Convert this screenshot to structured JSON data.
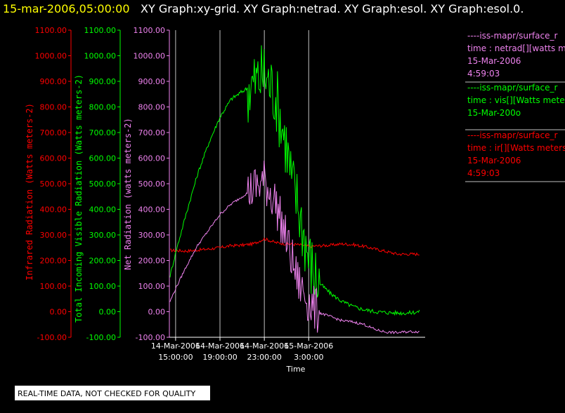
{
  "header": {
    "datetime": "15-mar-2006,05:00:00",
    "graphs": "XY Graph:xy-grid.  XY Graph:netrad.  XY Graph:esol.  XY Graph:esol.0."
  },
  "colors": {
    "background": "#000000",
    "datetime": "#ffff00",
    "title": "#ffffff",
    "ir": "#ff0000",
    "vis": "#00ff00",
    "net": "#ee82ee",
    "grid": "#c0c0c0",
    "axis": "#ffffff"
  },
  "axes": {
    "ir": {
      "label": "Infrared Radiation (Watts meters-2)",
      "ticks": [
        "1100.00",
        "1000.00",
        "900.00",
        "800.00",
        "700.00",
        "600.00",
        "500.00",
        "400.00",
        "300.00",
        "200.00",
        "100.00",
        "0.00",
        "-100.00"
      ]
    },
    "vis": {
      "label": "Total Incoming Visible Radiation (Watts meters-2)",
      "ticks": [
        "1100.00",
        "1000.00",
        "900.00",
        "800.00",
        "700.00",
        "600.00",
        "500.00",
        "400.00",
        "300.00",
        "200.00",
        "100.00",
        "0.00",
        "-100.00"
      ]
    },
    "net": {
      "label": "Net Radiation (watts meters-2)",
      "ticks": [
        "1100.00",
        "1000.00",
        "900.00",
        "800.00",
        "700.00",
        "600.00",
        "500.00",
        "400.00",
        "300.00",
        "200.00",
        "100.00",
        "0.00",
        "-100.00"
      ]
    },
    "x": {
      "label": "Time",
      "ticks": [
        {
          "date": "14-Mar-2006",
          "time": "15:00:00"
        },
        {
          "date": "14-Mar-2006",
          "time": "19:00:00"
        },
        {
          "date": "14-Mar-2006",
          "time": "23:00:00"
        },
        {
          "date": "15-Mar-2006",
          "time": "3:00:00"
        }
      ]
    }
  },
  "legend": [
    {
      "color": "#ee82ee",
      "lines": [
        "----iss-mapr/surface_r",
        "time : netrad[][watts m",
        "15-Mar-2006",
        "4:59:03"
      ]
    },
    {
      "color": "#00ff00",
      "lines": [
        "----iss-mapr/surface_r",
        "time : vis[][Watts mete",
        "15-Mar-200o"
      ]
    },
    {
      "color": "#ff0000",
      "lines": [
        "----iss-mapr/surface_r",
        "time : ir[][Watts meters",
        "15-Mar-2006",
        "4:59:03"
      ]
    }
  ],
  "note": "REAL-TIME DATA, NOT CHECKED FOR QUALITY",
  "chart_data": {
    "type": "line",
    "xlabel": "Time",
    "x_unit": "hours since 14-Mar-2006 15:00:00",
    "xlim": [
      -0.5,
      22.5
    ],
    "ylim": [
      -100,
      1100
    ],
    "grid": true,
    "series": [
      {
        "name": "ir",
        "color": "#ff0000",
        "noise": 6,
        "x": [
          -0.5,
          1,
          3,
          4,
          5,
          6,
          7,
          7.5,
          8,
          9,
          10,
          11,
          12,
          14,
          15,
          16,
          17,
          18,
          19,
          20,
          21,
          22
        ],
        "y": [
          240,
          237,
          245,
          250,
          258,
          260,
          265,
          275,
          285,
          270,
          265,
          262,
          255,
          260,
          265,
          262,
          255,
          245,
          235,
          225,
          225,
          225
        ]
      },
      {
        "name": "vis",
        "color": "#00ff00",
        "noise": 8,
        "x": [
          -0.5,
          0,
          1,
          2,
          3,
          4,
          5,
          6,
          7,
          8,
          9,
          10,
          10.5,
          11,
          11.5,
          12,
          12.5,
          13,
          14,
          15,
          16,
          17,
          18,
          19,
          20,
          21,
          22
        ],
        "y": [
          140,
          230,
          390,
          540,
          660,
          760,
          830,
          860,
          890,
          930,
          850,
          650,
          500,
          430,
          320,
          210,
          150,
          110,
          70,
          40,
          20,
          8,
          0,
          -3,
          -5,
          -5,
          0
        ]
      },
      {
        "name": "netrad",
        "color": "#ee82ee",
        "noise": 5,
        "x": [
          -0.5,
          0,
          1,
          2,
          3,
          4,
          5,
          6,
          7,
          8,
          9,
          10,
          10.5,
          11,
          11.5,
          12,
          12.5,
          13,
          14,
          15,
          16,
          17,
          18,
          19,
          20,
          21,
          22
        ],
        "y": [
          40,
          90,
          180,
          260,
          320,
          380,
          420,
          450,
          480,
          510,
          430,
          280,
          200,
          120,
          80,
          40,
          10,
          -5,
          -20,
          -35,
          -40,
          -50,
          -70,
          -80,
          -82,
          -78,
          -78
        ]
      }
    ]
  }
}
